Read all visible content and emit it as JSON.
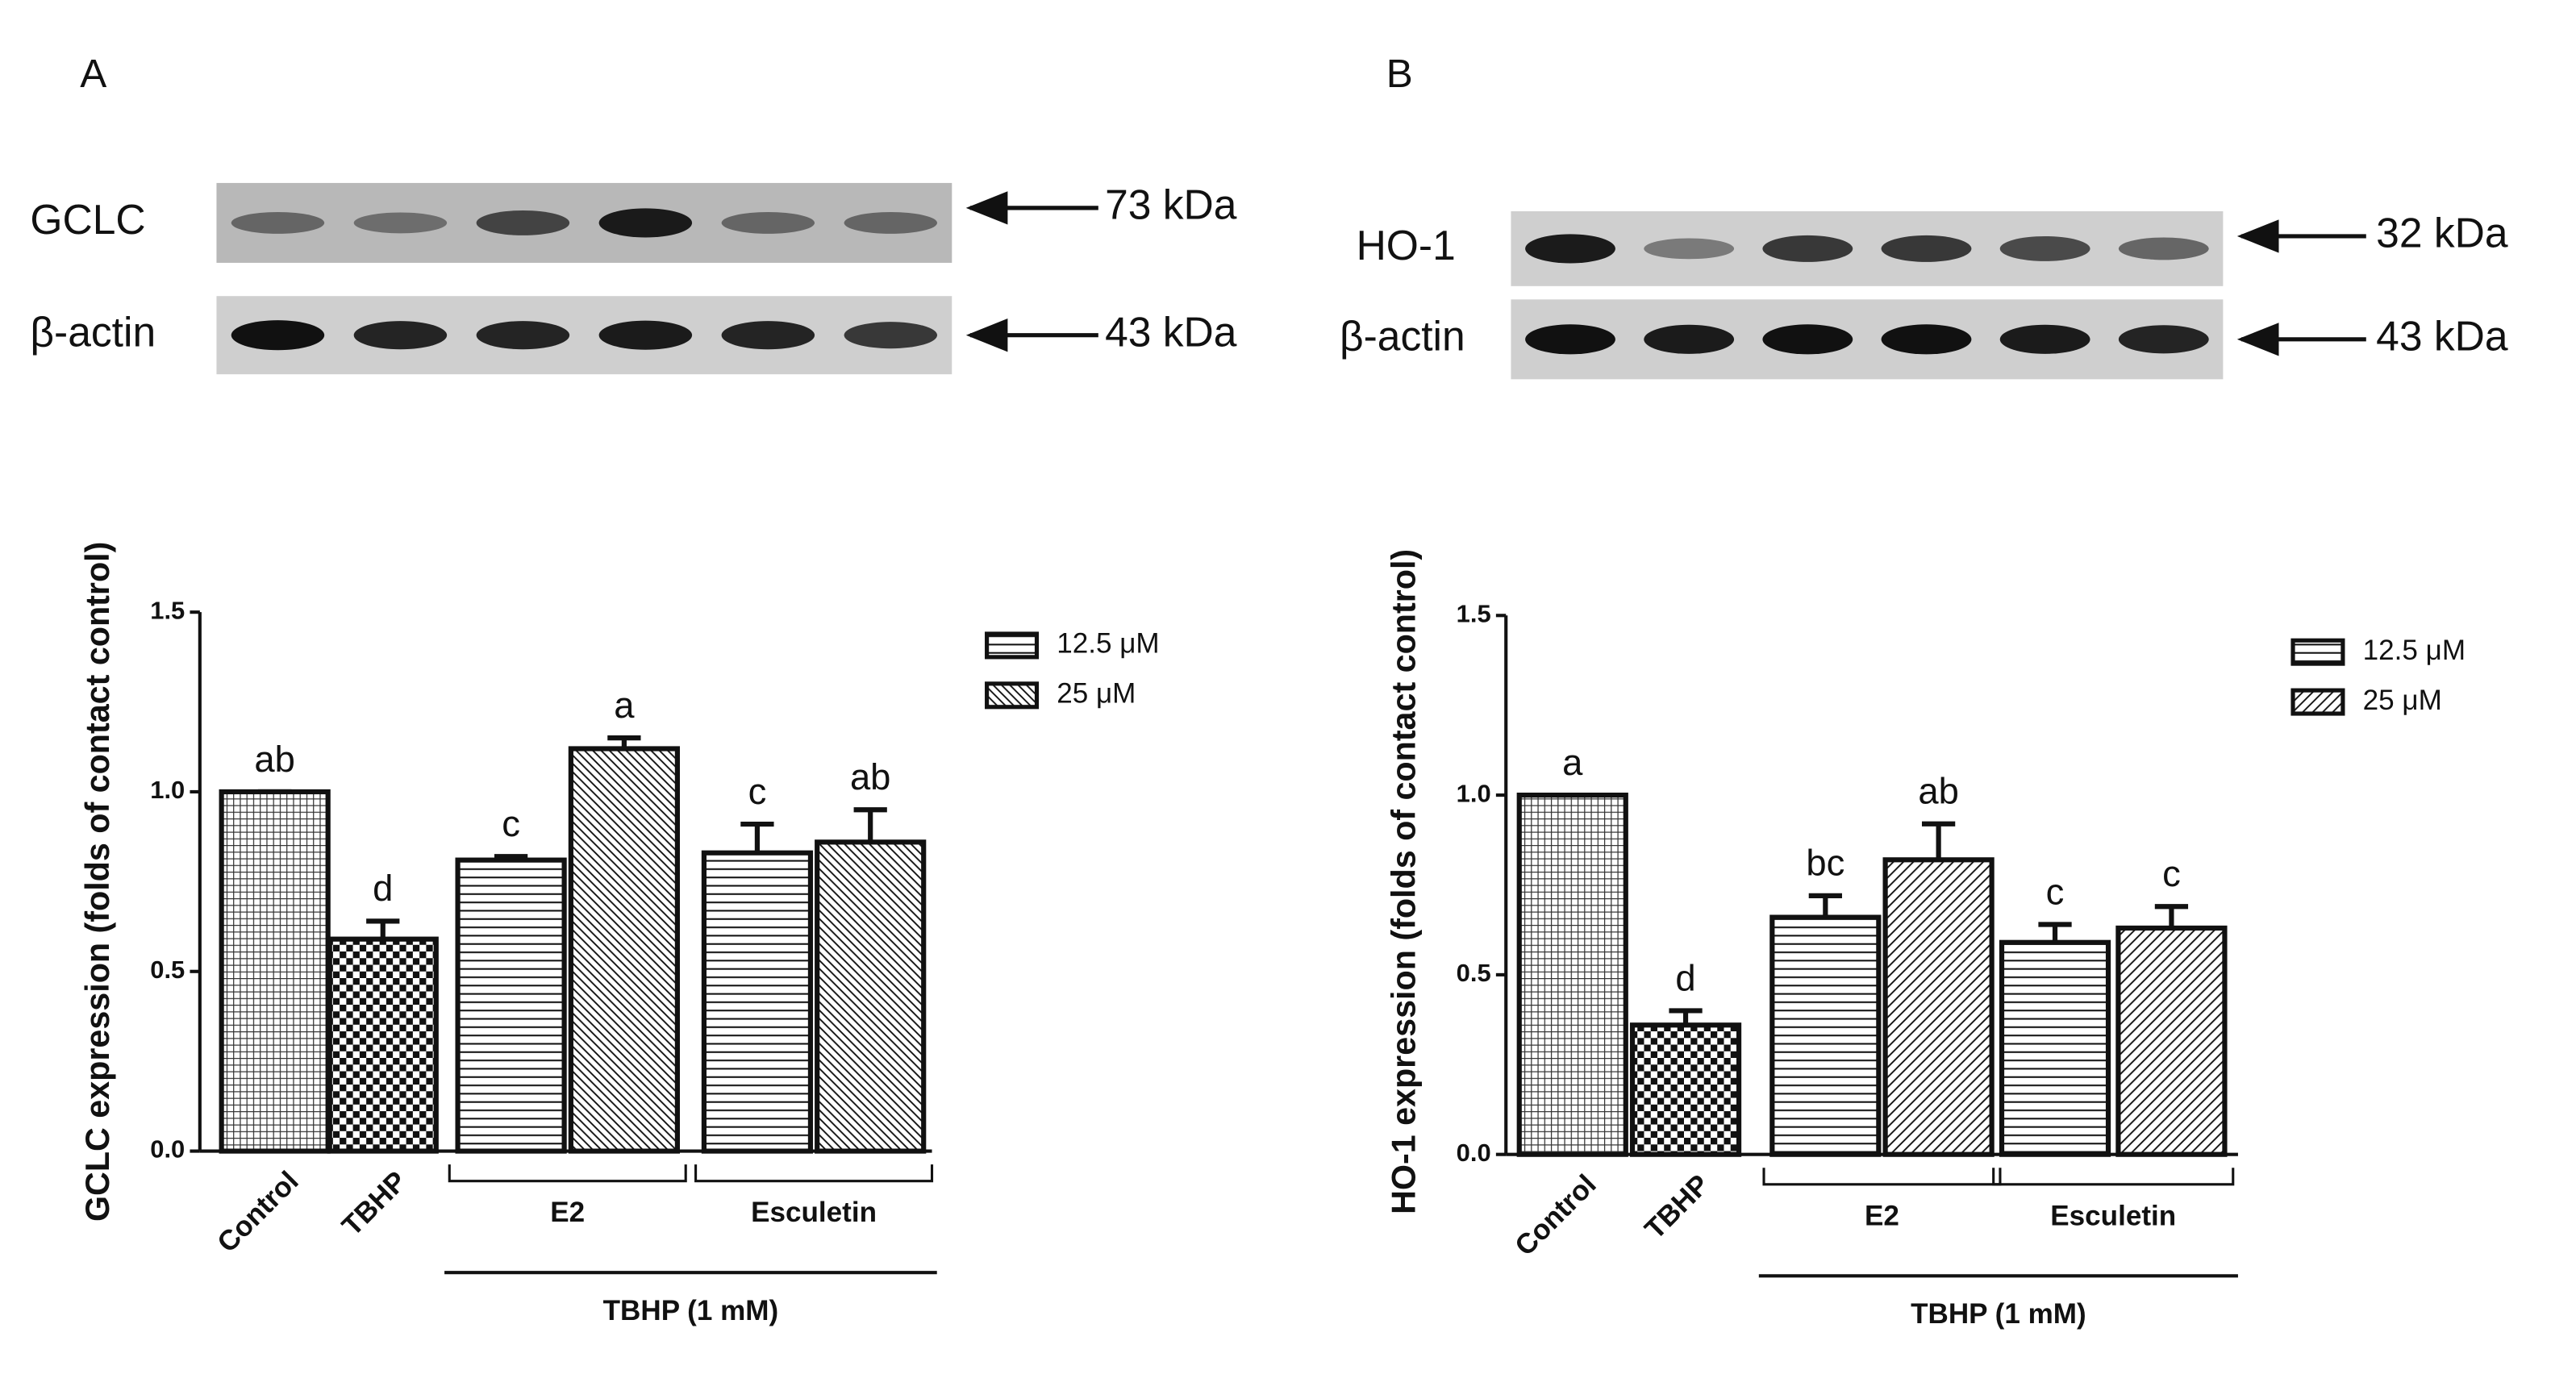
{
  "chart_data": [
    {
      "type": "bar",
      "panel": "A",
      "ylabel": "GCLC expression (folds of contact control)",
      "blots": [
        {
          "label": "GCLC",
          "size": "73 kDa"
        },
        {
          "label": "β-actin",
          "size": "43 kDa"
        }
      ],
      "categories": [
        "Control",
        "TBHP",
        null,
        null,
        null,
        null
      ],
      "values": [
        1.0,
        0.59,
        0.81,
        1.12,
        0.83,
        0.86
      ],
      "errors": [
        0,
        0.05,
        0.01,
        0.03,
        0.08,
        0.09
      ],
      "annotations": [
        "ab",
        "d",
        "c",
        "a",
        "c",
        "ab"
      ],
      "patterns": [
        "crosshatch",
        "checker",
        "horizontal",
        "diagonal-down",
        "horizontal",
        "diagonal-down"
      ],
      "groups": [
        "E2",
        "Esculetin"
      ],
      "supergroup": "TBHP (1 mM)",
      "legend": [
        {
          "label": "12.5 μM",
          "pattern": "horizontal"
        },
        {
          "label": "25 μM",
          "pattern": "diagonal-down"
        }
      ],
      "ylim": [
        0,
        1.5
      ],
      "yticks": [
        {
          "value": 0,
          "label": "0.0"
        },
        {
          "value": 0.5,
          "label": "0.5"
        },
        {
          "value": 1,
          "label": "1.0"
        },
        {
          "value": 1.5,
          "label": "1.5"
        }
      ]
    },
    {
      "type": "bar",
      "panel": "B",
      "ylabel": "HO-1 expression (folds of contact control)",
      "blots": [
        {
          "label": "HO-1",
          "size": "32 kDa"
        },
        {
          "label": "β-actin",
          "size": "43 kDa"
        }
      ],
      "categories": [
        "Control",
        "TBHP",
        null,
        null,
        null,
        null
      ],
      "values": [
        1.0,
        0.36,
        0.66,
        0.82,
        0.59,
        0.63
      ],
      "errors": [
        0,
        0.04,
        0.06,
        0.1,
        0.05,
        0.06
      ],
      "annotations": [
        "a",
        "d",
        "bc",
        "ab",
        "c",
        "c"
      ],
      "patterns": [
        "crosshatch",
        "checker",
        "horizontal",
        "diagonal-up",
        "horizontal",
        "diagonal-up"
      ],
      "groups": [
        "E2",
        "Esculetin"
      ],
      "supergroup": "TBHP (1 mM)",
      "legend": [
        {
          "label": "12.5 μM",
          "pattern": "horizontal"
        },
        {
          "label": "25 μM",
          "pattern": "diagonal-up"
        }
      ],
      "ylim": [
        0,
        1.5
      ],
      "yticks": [
        {
          "value": 0,
          "label": "0.0"
        },
        {
          "value": 0.5,
          "label": "0.5"
        },
        {
          "value": 1,
          "label": "1.0"
        },
        {
          "value": 1.5,
          "label": "1.5"
        }
      ]
    }
  ]
}
